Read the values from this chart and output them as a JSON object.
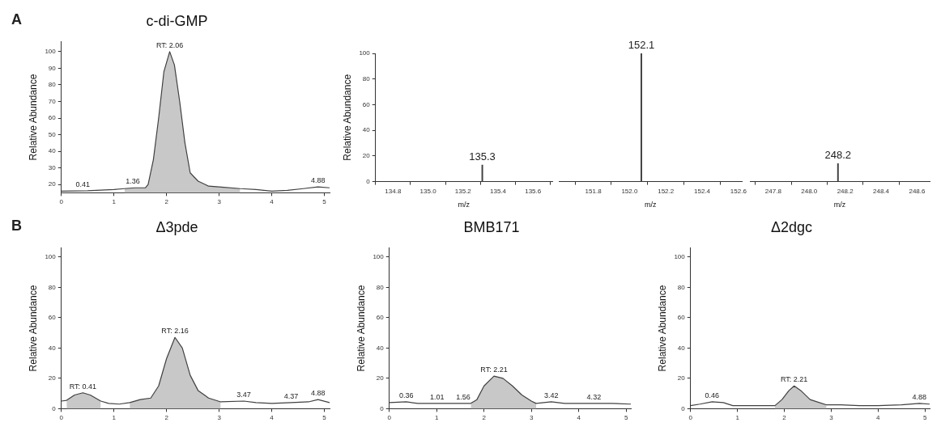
{
  "chart_data": [
    {
      "type": "line",
      "title": "c-di-GMP",
      "ylabel": "Relative Abundance",
      "marker": "none",
      "xlim": [
        0,
        5.1
      ],
      "xticks": [
        0,
        1,
        2,
        3,
        4,
        5
      ],
      "ylim": [
        15,
        106
      ],
      "yticks": [
        20,
        30,
        40,
        50,
        60,
        70,
        80,
        90,
        100
      ],
      "series": [
        {
          "type": "line",
          "color": "#404040",
          "x": [
            0,
            0.5,
            1.0,
            1.2,
            1.4,
            1.6,
            1.65,
            1.75,
            1.85,
            1.95,
            2.06,
            2.15,
            2.25,
            2.35,
            2.45,
            2.6,
            2.8,
            3.0,
            3.4,
            3.7,
            4.0,
            4.3,
            4.6,
            4.88,
            5.1
          ],
          "values": [
            16,
            16.2,
            17,
            17.5,
            18,
            18,
            20,
            35,
            60,
            88,
            100,
            92,
            70,
            45,
            27,
            22,
            19,
            18.5,
            17.5,
            17,
            16,
            16.5,
            17.5,
            18.5,
            18
          ]
        },
        {
          "type": "area",
          "color": "#c8c8c8",
          "x": [
            1.2,
            1.4,
            1.6,
            1.65,
            1.75,
            1.85,
            1.95,
            2.06,
            2.15,
            2.25,
            2.35,
            2.45,
            2.6,
            2.8,
            3.0,
            3.4
          ],
          "values": [
            17.5,
            18,
            18,
            20,
            35,
            60,
            88,
            100,
            92,
            70,
            45,
            27,
            22,
            19,
            18.5,
            17.5
          ]
        }
      ],
      "annotations": [
        "A",
        {
          "text": "RT: 2.06",
          "x": 2.06,
          "y": 100
        },
        {
          "text": "0.41",
          "x": 0.41,
          "y": 16.2
        },
        {
          "text": "1.36",
          "x": 1.36,
          "y": 18
        },
        {
          "text": "4.88",
          "x": 4.88,
          "y": 18.5
        }
      ]
    },
    {
      "type": "bar",
      "ylabel": "Relative Abundance",
      "xlabel": "m/z",
      "xlim": [
        134.7,
        135.71
      ],
      "xticks": [
        134.8,
        {
          "value": 135,
          "label": "135.0"
        },
        135.2,
        135.4,
        135.6
      ],
      "ylim": [
        0,
        100
      ],
      "yticks": [
        0,
        20,
        40,
        60,
        80,
        100
      ],
      "series": [
        {
          "color": "#404040",
          "x": [
            135.31
          ],
          "values": [
            13
          ]
        }
      ],
      "annotations": [
        {
          "text": "135.3",
          "x": 135.31,
          "y": 13
        }
      ]
    },
    {
      "type": "bar",
      "xlabel": "m/z",
      "tick_labels": "x",
      "xlim": [
        151.61,
        152.62
      ],
      "xticks": [
        151.8,
        {
          "value": 152,
          "label": "152.0"
        },
        152.2,
        152.4,
        152.6
      ],
      "ylim": [
        0,
        100
      ],
      "series": [
        {
          "color": "#404040",
          "x": [
            152.065
          ],
          "values": [
            100
          ]
        }
      ],
      "annotations": [
        {
          "text": "152.1",
          "x": 152.065,
          "y": 100
        }
      ]
    },
    {
      "type": "bar",
      "xlabel": "m/z",
      "tick_labels": "x",
      "xlim": [
        247.67,
        248.67
      ],
      "xticks": [
        247.8,
        {
          "value": 248,
          "label": "248.0"
        },
        248.2,
        248.4,
        248.6
      ],
      "ylim": [
        0,
        100
      ],
      "series": [
        {
          "color": "#404040",
          "x": [
            248.16
          ],
          "values": [
            14
          ]
        }
      ],
      "annotations": [
        {
          "text": "248.2",
          "x": 248.16,
          "y": 14
        }
      ]
    },
    {
      "type": "line",
      "title": "Δ3pde",
      "ylabel": "Relative Abundance",
      "marker": "none",
      "xlim": [
        0,
        5.1
      ],
      "xticks": [
        0,
        1,
        2,
        3,
        4,
        5
      ],
      "ylim": [
        0,
        106
      ],
      "yticks": [
        0,
        20,
        40,
        60,
        80,
        100
      ],
      "series": [
        {
          "type": "line",
          "color": "#404040",
          "x": [
            0,
            0.1,
            0.25,
            0.41,
            0.55,
            0.75,
            0.9,
            1.1,
            1.3,
            1.5,
            1.7,
            1.85,
            2.0,
            2.16,
            2.3,
            2.45,
            2.6,
            2.8,
            3.03,
            3.47,
            3.7,
            4.0,
            4.37,
            4.7,
            4.88,
            5.1
          ],
          "values": [
            5,
            5.5,
            9,
            10.5,
            9,
            5,
            3.5,
            3,
            4,
            6,
            7,
            15,
            33,
            47,
            40,
            22,
            12,
            7,
            4.5,
            5,
            4,
            3.5,
            4,
            4.5,
            6,
            4
          ]
        },
        {
          "type": "area",
          "color": "#c8c8c8",
          "x": [
            0.1,
            0.25,
            0.41,
            0.55,
            0.75
          ],
          "values": [
            5.5,
            9,
            10.5,
            9,
            5
          ]
        },
        {
          "type": "area",
          "color": "#c8c8c8",
          "x": [
            1.3,
            1.5,
            1.7,
            1.85,
            2.0,
            2.16,
            2.3,
            2.45,
            2.6,
            2.8,
            3.03
          ],
          "values": [
            4,
            6,
            7,
            15,
            33,
            47,
            40,
            22,
            12,
            7,
            4.5
          ]
        }
      ],
      "annotations": [
        "B",
        {
          "text": "RT: 0.41",
          "x": 0.41,
          "y": 10.5
        },
        {
          "text": "RT: 2.16",
          "x": 2.16,
          "y": 47
        },
        {
          "text": "3.47",
          "x": 3.47,
          "y": 5
        },
        {
          "text": "4.37",
          "x": 4.37,
          "y": 4
        },
        {
          "text": "4.88",
          "x": 4.88,
          "y": 6
        }
      ]
    },
    {
      "type": "line",
      "title": "BMB171",
      "ylabel": "Relative Abundance",
      "marker": "none",
      "xlim": [
        0,
        5.1
      ],
      "xticks": [
        0,
        1,
        2,
        3,
        4,
        5
      ],
      "ylim": [
        0,
        106
      ],
      "yticks": [
        0,
        20,
        40,
        60,
        80,
        100
      ],
      "series": [
        {
          "type": "line",
          "color": "#404040",
          "x": [
            0,
            0.36,
            0.6,
            1.01,
            1.3,
            1.56,
            1.72,
            1.85,
            2.0,
            2.21,
            2.4,
            2.6,
            2.8,
            3.0,
            3.1,
            3.42,
            3.7,
            4.32,
            4.7,
            5.1
          ],
          "values": [
            4,
            4.5,
            3.5,
            3.5,
            3.5,
            3.5,
            3.5,
            6,
            15,
            21.5,
            20,
            15,
            9,
            5,
            3.5,
            4.5,
            3.5,
            3.5,
            3.5,
            3
          ]
        },
        {
          "type": "area",
          "color": "#c8c8c8",
          "x": [
            1.72,
            1.85,
            2.0,
            2.21,
            2.4,
            2.6,
            2.8,
            3.0,
            3.1
          ],
          "values": [
            3.5,
            6,
            15,
            21.5,
            20,
            15,
            9,
            5,
            3.5
          ]
        }
      ],
      "annotations": [
        {
          "text": "0.36",
          "x": 0.36,
          "y": 4.5
        },
        {
          "text": "1.01",
          "x": 1.01,
          "y": 3.5
        },
        {
          "text": "1.56",
          "x": 1.56,
          "y": 3.5
        },
        {
          "text": "RT: 2.21",
          "x": 2.21,
          "y": 21.5
        },
        {
          "text": "3.42",
          "x": 3.42,
          "y": 4.5
        },
        {
          "text": "4.32",
          "x": 4.32,
          "y": 3.5
        }
      ]
    },
    {
      "type": "line",
      "title": "Δ2dgc",
      "ylabel": "Relative Abundance",
      "marker": "none",
      "xlim": [
        0,
        5.1
      ],
      "xticks": [
        0,
        1,
        2,
        3,
        4,
        5
      ],
      "ylim": [
        0,
        106
      ],
      "yticks": [
        0,
        20,
        40,
        60,
        80,
        100
      ],
      "series": [
        {
          "type": "line",
          "color": "#404040",
          "x": [
            0,
            0.2,
            0.46,
            0.7,
            0.9,
            1.3,
            1.8,
            1.95,
            2.1,
            2.21,
            2.35,
            2.55,
            2.9,
            3.2,
            3.6,
            4.0,
            4.5,
            4.88,
            5.1
          ],
          "values": [
            2,
            3,
            4.5,
            4,
            2,
            2,
            2,
            6,
            12,
            15,
            12,
            6,
            2.5,
            2.5,
            2,
            2,
            2.5,
            3.5,
            3
          ]
        },
        {
          "type": "area",
          "color": "#c8c8c8",
          "x": [
            1.8,
            1.95,
            2.1,
            2.21,
            2.35,
            2.55,
            2.9
          ],
          "values": [
            2,
            6,
            12,
            15,
            12,
            6,
            2.5
          ]
        }
      ],
      "annotations": [
        {
          "text": "0.46",
          "x": 0.46,
          "y": 4.5
        },
        {
          "text": "RT: 2.21",
          "x": 2.21,
          "y": 15
        },
        {
          "text": "4.88",
          "x": 4.88,
          "y": 3.5
        }
      ]
    }
  ]
}
